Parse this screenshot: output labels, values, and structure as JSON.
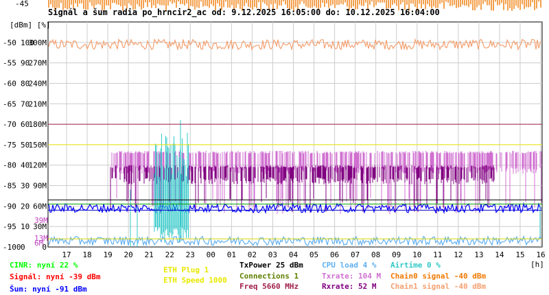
{
  "title": "Signál a šum radia po_hrncir2_ac od: 9.12.2025 16:05:00 do: 10.12.2025 16:04:00",
  "chart_data": {
    "type": "line",
    "title": "Signál a šum radia po_hrncir2_ac od: 9.12.2025 16:05:00 do: 10.12.2025 16:04:00",
    "y_unit_label": "[dBm] [%]",
    "x_unit_label": "[h]",
    "x_ticks": [
      "17",
      "18",
      "19",
      "20",
      "21",
      "22",
      "23",
      "00",
      "01",
      "02",
      "03",
      "04",
      "05",
      "06",
      "07",
      "08",
      "09",
      "10",
      "11",
      "12",
      "13",
      "14",
      "15",
      "16"
    ],
    "y_ticks": [
      {
        "dbm": "-45",
        "pct": "",
        "rate": ""
      },
      {
        "dbm": "-50",
        "pct": "100",
        "rate": "300M"
      },
      {
        "dbm": "-55",
        "pct": "90",
        "rate": "270M"
      },
      {
        "dbm": "-60",
        "pct": "80",
        "rate": "240M"
      },
      {
        "dbm": "-65",
        "pct": "70",
        "rate": "210M"
      },
      {
        "dbm": "-70",
        "pct": "60",
        "rate": "180M"
      },
      {
        "dbm": "-75",
        "pct": "50",
        "rate": "150M"
      },
      {
        "dbm": "-80",
        "pct": "40",
        "rate": "120M"
      },
      {
        "dbm": "-85",
        "pct": "30",
        "rate": "90M"
      },
      {
        "dbm": "-90",
        "pct": "20",
        "rate": "60M"
      },
      {
        "dbm": "-95",
        "pct": "10",
        "rate": "30M"
      },
      {
        "dbm": "-100",
        "pct": "0",
        "rate": "0"
      }
    ],
    "ylim": [
      -100,
      -45
    ],
    "rate_markers": [
      {
        "label": "39M",
        "value": 39
      },
      {
        "label": "13M",
        "value": 13
      },
      {
        "label": "6M",
        "value": 6
      }
    ],
    "reference_lines": [
      {
        "name": "threshold",
        "dbm": -70,
        "color": "#a0204a"
      },
      {
        "name": "threshold",
        "dbm": -75,
        "color": "#e8e800"
      },
      {
        "name": "threshold",
        "dbm": -88.5,
        "color": "#000000"
      },
      {
        "name": "threshold",
        "dbm": -89.5,
        "color": "#00a000"
      },
      {
        "name": "threshold",
        "dbm": -91,
        "color": "#0000cc"
      },
      {
        "name": "threshold",
        "dbm": -98,
        "color": "#d8d800"
      }
    ],
    "series": [
      {
        "color": "#f07800",
        "level_dbm": -44,
        "shape": "spikes-top"
      },
      {
        "color": "#f4a070",
        "level_dbm": -50.5,
        "shape": "noise"
      },
      {
        "color": "#d070d0",
        "level_dbm": -78,
        "shape": "band"
      },
      {
        "color": "#800080",
        "level_dbm": -80,
        "shape": "band"
      },
      {
        "color": "#0000ff",
        "level_dbm": -90.5,
        "shape": "noise"
      },
      {
        "color": "#30c8c8",
        "level_dbm": -80,
        "shape": "burst"
      },
      {
        "color": "#60b0f0",
        "level_dbm": -98.5,
        "shape": "noise"
      }
    ]
  },
  "legend": {
    "cinr": "CINR: nyní 22 %",
    "signal": "Signál: nyní -39 dBm",
    "sum": "Šum: nyní -91 dBm",
    "eth_plug": "ETH Plug 1",
    "eth_speed": "ETH Speed 1000",
    "txpower": "TxPower 25 dBm",
    "connections": "Connections 1",
    "freq": "Freq 5660 MHz",
    "cpu": "CPU load 4 %",
    "txrate": "Txrate: 104 M",
    "rxrate": "Rxrate: 52 M",
    "airtime": "Airtime 0 %",
    "chain0": "Chain0 signal -40 dBm",
    "chain1": "Chain1 signal -40 dBm"
  },
  "colors": {
    "cinr": "#00ff00",
    "signal": "#ff0000",
    "sum": "#0000ff",
    "eth": "#e8e800",
    "txpower": "#000000",
    "connections": "#608000",
    "freq": "#a0204a",
    "cpu": "#60b0f0",
    "txrate": "#d070d0",
    "rxrate": "#800080",
    "airtime": "#30c8c8",
    "chain0": "#f07800",
    "chain1": "#f4a070"
  }
}
